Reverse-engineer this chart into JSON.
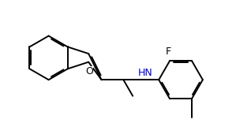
{
  "background_color": "#ffffff",
  "line_color": "#000000",
  "N_color": "#0000cd",
  "font_size": 8,
  "line_width": 1.4,
  "figsize": [
    3.18,
    1.56
  ],
  "dpi": 100,
  "xlim": [
    0,
    10
  ],
  "ylim": [
    0,
    5
  ]
}
